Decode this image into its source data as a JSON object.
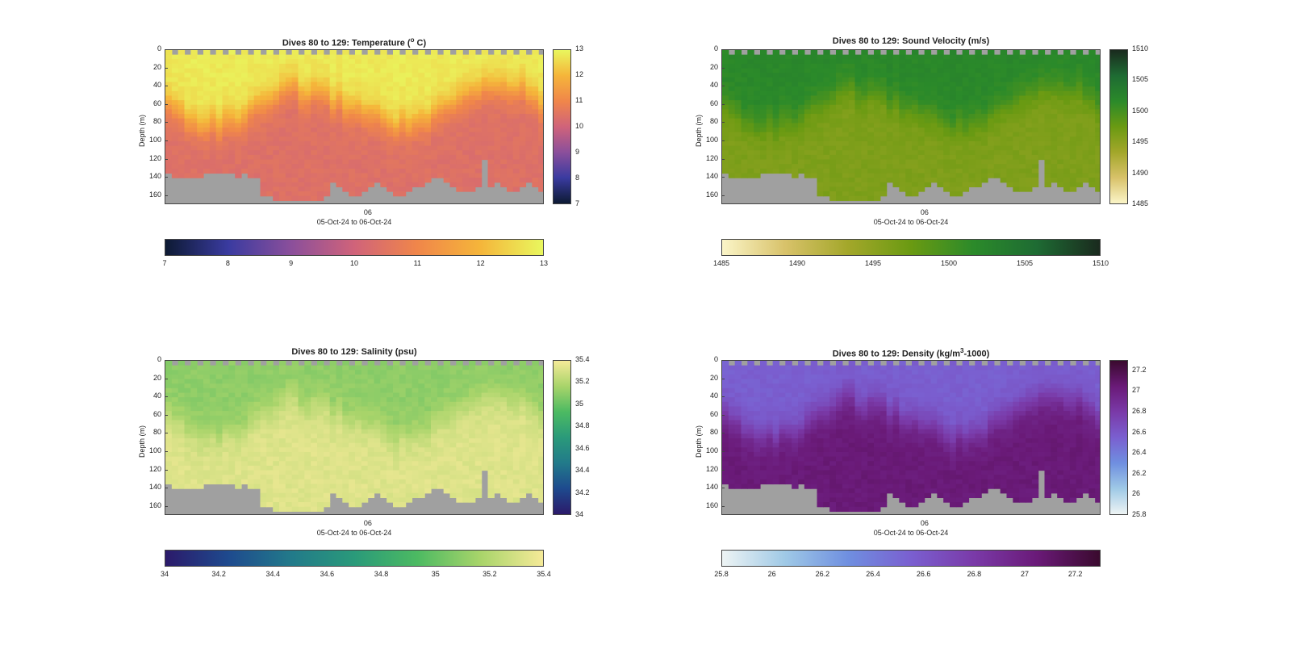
{
  "chart_data": [
    {
      "type": "heatmap",
      "title_main": "Dives 80 to 129: Temperature (",
      "title_sup": "o",
      "title_end": " C)",
      "ylabel": "Depth (m)",
      "xlabel": "05-Oct-24 to 06-Oct-24",
      "x_tick": "06",
      "y_ticks": [
        "0",
        "20",
        "40",
        "60",
        "80",
        "100",
        "120",
        "140",
        "160"
      ],
      "ylim": [
        0,
        170
      ],
      "clim": [
        7,
        13
      ],
      "cbar_ticks": [
        "7",
        "8",
        "9",
        "10",
        "11",
        "12",
        "13"
      ],
      "colors": [
        "#0d1a33",
        "#3a3ba0",
        "#8b4f9b",
        "#d0637a",
        "#f0864a",
        "#f5b53a",
        "#e9f75e"
      ],
      "surface_value": 12.8,
      "deep_value": 10.4,
      "variable": "temperature"
    },
    {
      "type": "heatmap",
      "title_main": "Dives 80 to 129: Sound Velocity (m/s)",
      "title_sup": "",
      "title_end": "",
      "ylabel": "Depth (m)",
      "xlabel": "05-Oct-24 to 06-Oct-24",
      "x_tick": "06",
      "y_ticks": [
        "0",
        "20",
        "40",
        "60",
        "80",
        "100",
        "120",
        "140",
        "160"
      ],
      "ylim": [
        0,
        170
      ],
      "clim": [
        1485,
        1510
      ],
      "cbar_ticks": [
        "1485",
        "1490",
        "1495",
        "1500",
        "1505",
        "1510"
      ],
      "colors": [
        "#fbf5c8",
        "#d8c26a",
        "#a3a72a",
        "#6a9a12",
        "#2b8a2a",
        "#1e6b33",
        "#1a2a1e"
      ],
      "surface_value": 1502,
      "deep_value": 1496,
      "variable": "sound_velocity"
    },
    {
      "type": "heatmap",
      "title_main": "Dives 80 to 129: Salinity (psu)",
      "title_sup": "",
      "title_end": "",
      "ylabel": "Depth (m)",
      "xlabel": "05-Oct-24 to 06-Oct-24",
      "x_tick": "06",
      "y_ticks": [
        "0",
        "20",
        "40",
        "60",
        "80",
        "100",
        "120",
        "140",
        "160"
      ],
      "ylim": [
        0,
        170
      ],
      "clim": [
        34,
        35.4
      ],
      "cbar_ticks": [
        "34",
        "34.2",
        "34.4",
        "34.6",
        "34.8",
        "35",
        "35.2",
        "35.4"
      ],
      "colors": [
        "#2b1a6a",
        "#1e4a8e",
        "#227a8a",
        "#2a9a7a",
        "#4cba62",
        "#a8d46a",
        "#f5ea98"
      ],
      "surface_value": 35.1,
      "deep_value": 35.33,
      "variable": "salinity"
    },
    {
      "type": "heatmap",
      "title_main": "Dives 80 to 129: Density (kg/m",
      "title_sup": "3",
      "title_end": "-1000)",
      "ylabel": "Depth (m)",
      "xlabel": "05-Oct-24 to 06-Oct-24",
      "x_tick": "06",
      "y_ticks": [
        "0",
        "20",
        "40",
        "60",
        "80",
        "100",
        "120",
        "140",
        "160"
      ],
      "ylim": [
        0,
        170
      ],
      "clim": [
        25.8,
        27.3
      ],
      "cbar_ticks": [
        "25.8",
        "26",
        "26.2",
        "26.4",
        "26.6",
        "26.8",
        "27",
        "27.2"
      ],
      "colors": [
        "#eef4f4",
        "#9fc9e6",
        "#6f8fe0",
        "#7a5fd0",
        "#7a3aa8",
        "#6a1a78",
        "#3a0a2e"
      ],
      "surface_value": 26.55,
      "deep_value": 27.05,
      "variable": "density"
    }
  ]
}
